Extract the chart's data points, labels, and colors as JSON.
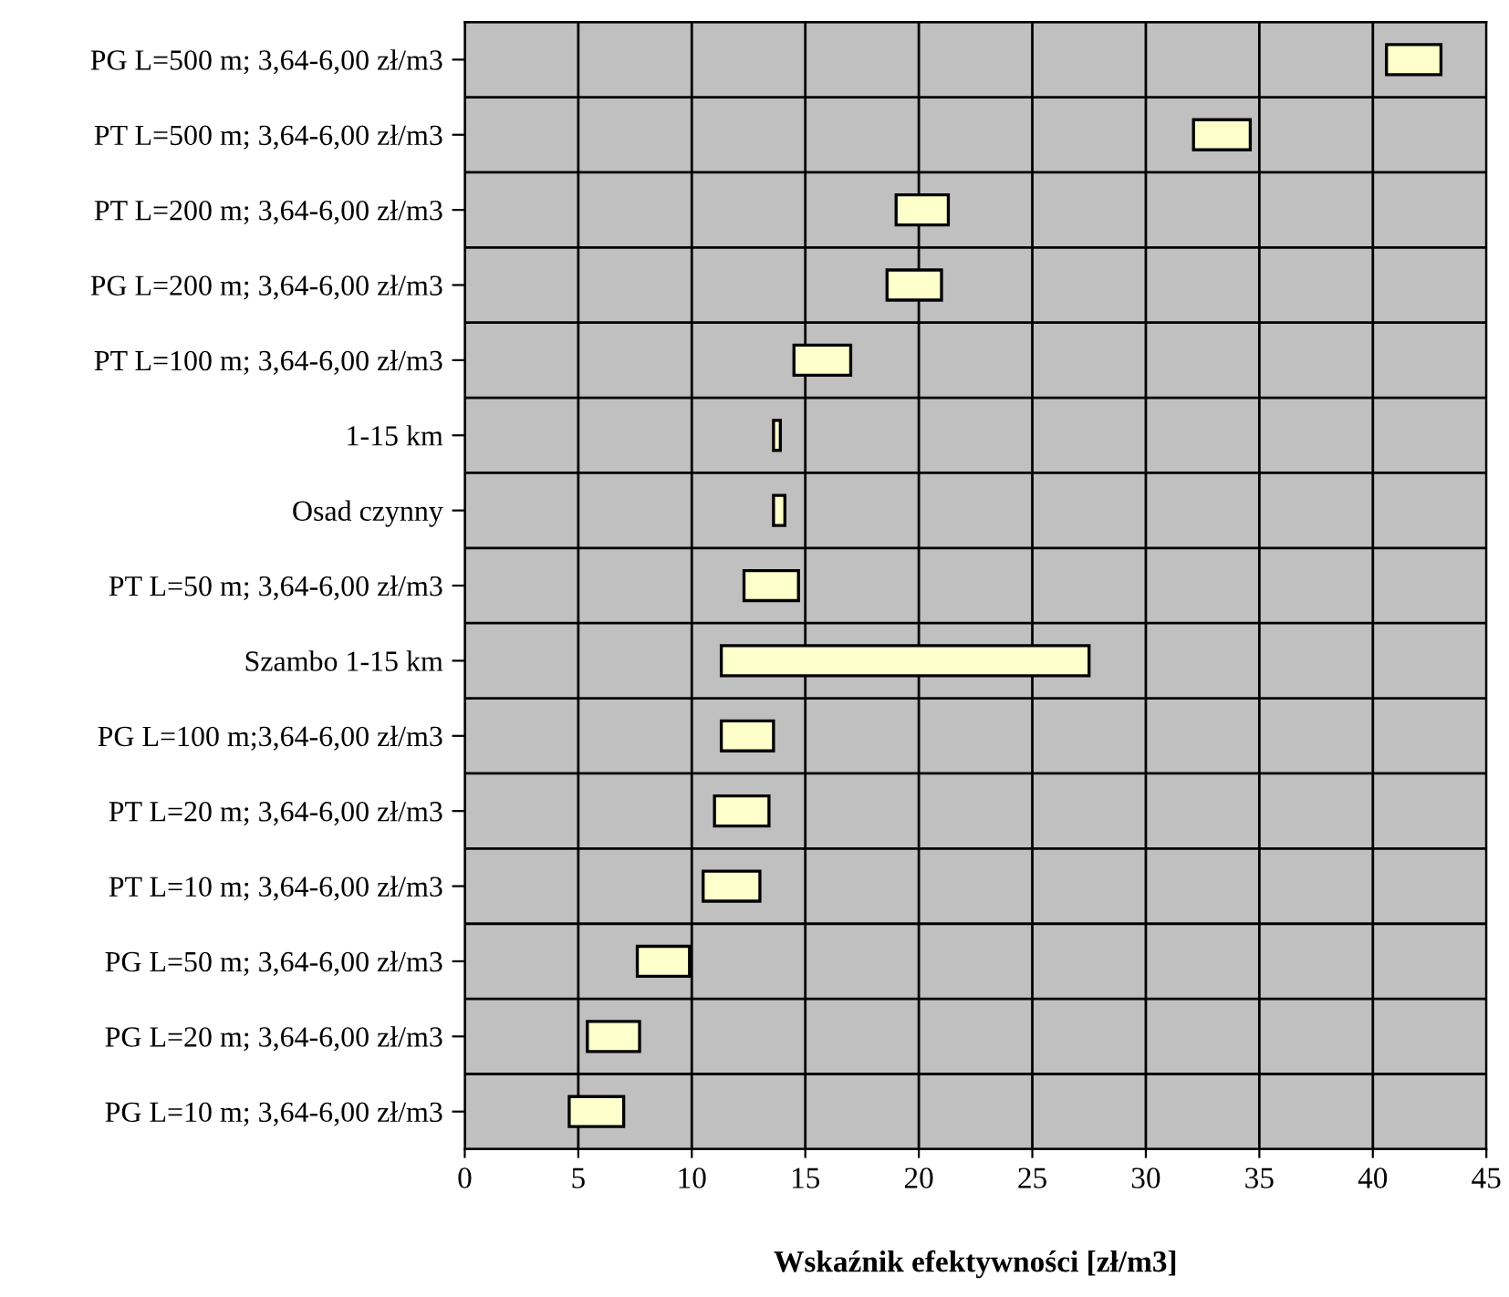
{
  "chart_data": {
    "type": "bar",
    "orientation": "horizontal",
    "xlabel": "Wskaźnik efektywności [zł/m3]",
    "categories": [
      "PG L=500 m; 3,64-6,00 zł/m3",
      "PT L=500 m; 3,64-6,00 zł/m3",
      "PT L=200 m; 3,64-6,00 zł/m3",
      "PG L=200 m; 3,64-6,00 zł/m3",
      "PT L=100 m; 3,64-6,00 zł/m3",
      "1-15 km",
      "Osad czynny",
      "PT L=50 m; 3,64-6,00 zł/m3",
      "Szambo 1-15 km",
      "PG L=100 m;3,64-6,00 zł/m3",
      "PT L=20 m; 3,64-6,00 zł/m3",
      "PT L=10 m; 3,64-6,00 zł/m3",
      "PG L=50 m; 3,64-6,00 zł/m3",
      "PG L=20 m; 3,64-6,00 zł/m3",
      "PG L=10 m; 3,64-6,00 zł/m3"
    ],
    "base": [
      40.6,
      32.1,
      19.0,
      18.6,
      14.5,
      13.6,
      13.6,
      12.3,
      11.3,
      11.3,
      11.0,
      10.5,
      7.6,
      5.4,
      4.6
    ],
    "values": [
      2.4,
      2.5,
      2.3,
      2.4,
      2.5,
      0.3,
      0.5,
      2.4,
      16.2,
      2.3,
      2.4,
      2.5,
      2.3,
      2.3,
      2.4
    ],
    "color": "#ffffcc",
    "xlim": [
      0,
      45
    ],
    "xticks": [
      0,
      5,
      10,
      15,
      20,
      25,
      30,
      35,
      40,
      45
    ],
    "grid": true
  }
}
